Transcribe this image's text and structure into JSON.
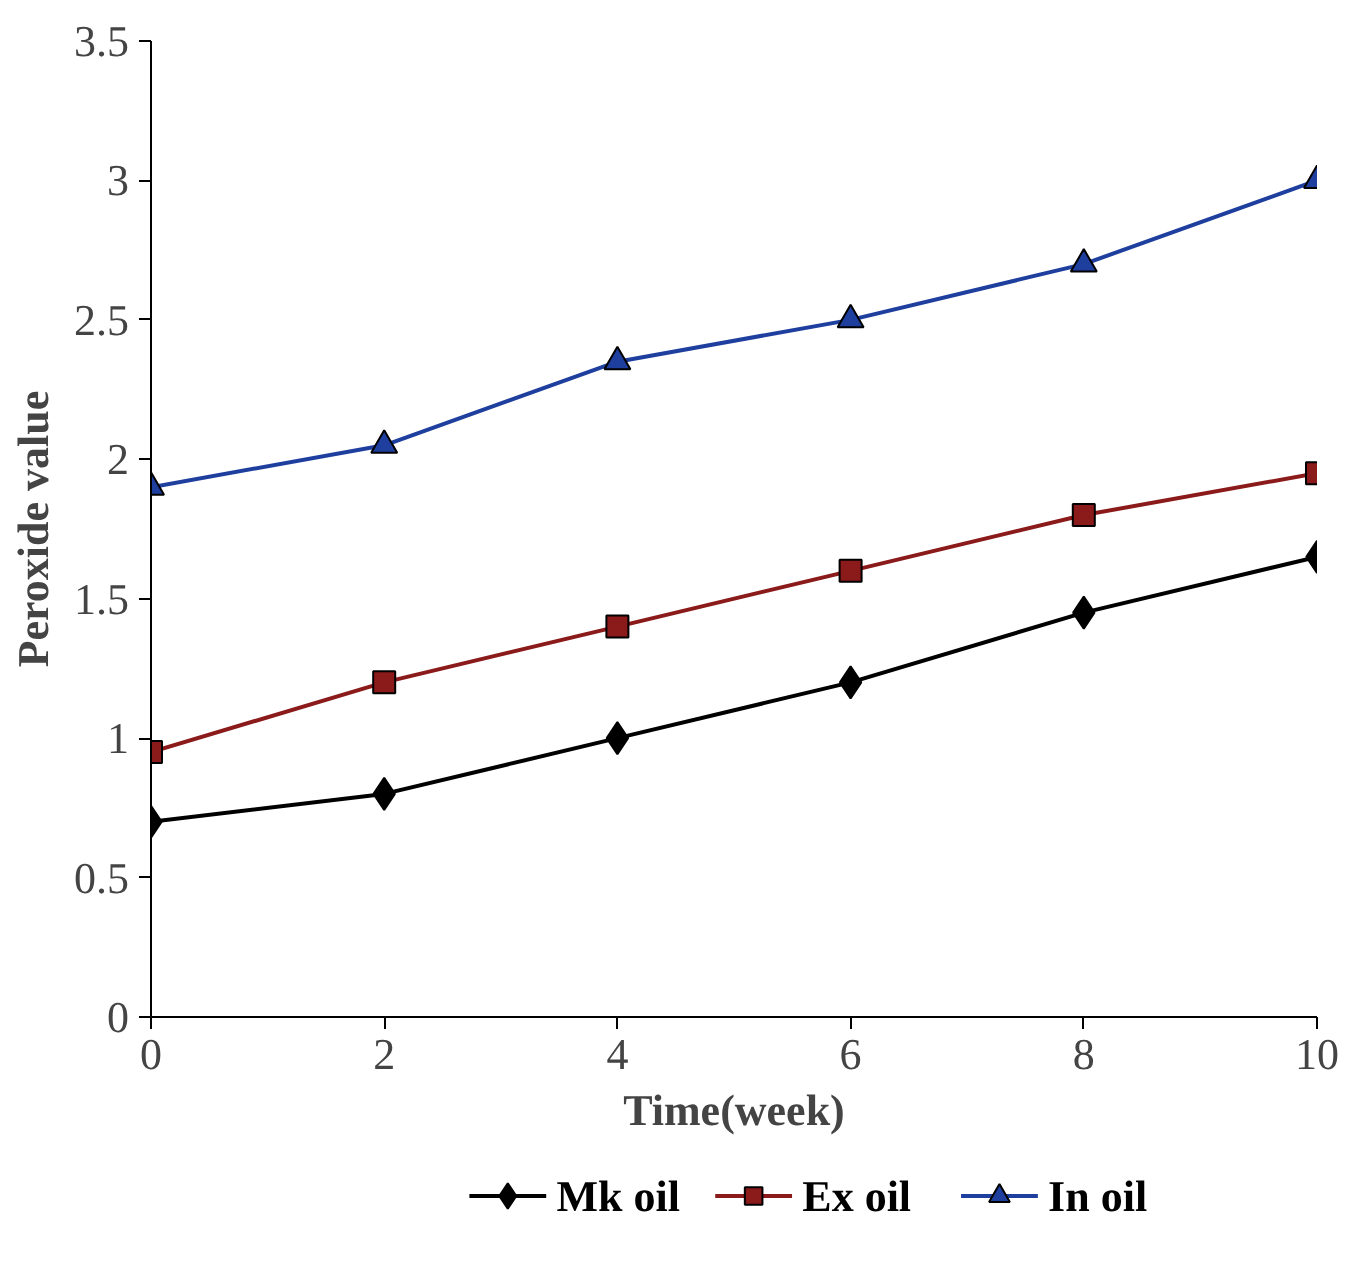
{
  "chart_data": {
    "type": "line",
    "xlabel": "Time(week)",
    "ylabel": "Peroxide value",
    "x": [
      0,
      2,
      4,
      6,
      8,
      10
    ],
    "series": [
      {
        "name": "Mk oil",
        "color": "#000000",
        "marker": "diamond",
        "values": [
          0.7,
          0.8,
          1.0,
          1.2,
          1.45,
          1.65
        ]
      },
      {
        "name": "Ex oil",
        "color": "#8b1a1a",
        "marker": "square",
        "values": [
          0.95,
          1.2,
          1.4,
          1.6,
          1.8,
          1.95
        ]
      },
      {
        "name": "In oil",
        "color": "#1f3f9f",
        "marker": "triangle",
        "values": [
          1.9,
          2.05,
          2.35,
          2.5,
          2.7,
          3.0
        ]
      }
    ],
    "xlim": [
      0,
      10
    ],
    "xticks": [
      0,
      2,
      4,
      6,
      8,
      10
    ],
    "ylim": [
      0,
      3.5
    ],
    "yticks": [
      0,
      0.5,
      1,
      1.5,
      2,
      2.5,
      3,
      3.5
    ],
    "grid": false,
    "legend": "bottom",
    "line_style": "solid"
  }
}
